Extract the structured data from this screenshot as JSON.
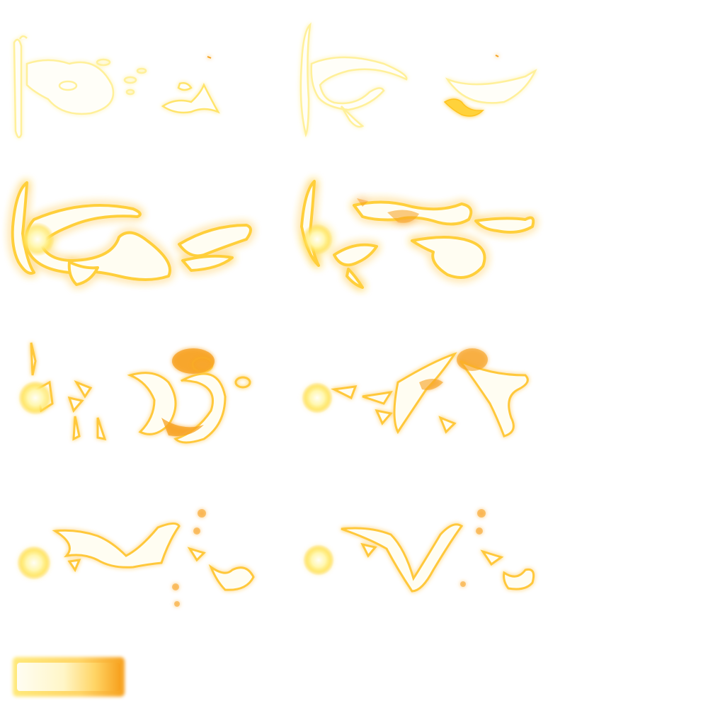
{
  "sheet": {
    "name": "golden-slash-effect-sprite-sheet",
    "frame_count": 8,
    "background": "#ffffff"
  },
  "palette": {
    "core": "#fffdf2",
    "glow_yellow": "#ffe97a",
    "glow_amber": "#ffc83a",
    "glow_orange": "#f7a11e",
    "pale_line": "#fff3a0"
  },
  "frames": [
    {
      "id": "frame-1",
      "style": "faint-outline"
    },
    {
      "id": "frame-2",
      "style": "faint-outline"
    },
    {
      "id": "frame-3",
      "style": "bright-slash"
    },
    {
      "id": "frame-4",
      "style": "bright-slash"
    },
    {
      "id": "frame-5",
      "style": "burst"
    },
    {
      "id": "frame-6",
      "style": "burst"
    },
    {
      "id": "frame-7",
      "style": "fading"
    },
    {
      "id": "frame-8",
      "style": "fading"
    }
  ],
  "gradient_bar": {
    "name": "glow-gradient-bar",
    "stops": [
      "#fffdf2",
      "#fff6c8",
      "#ffd566",
      "#f7a11e"
    ]
  }
}
